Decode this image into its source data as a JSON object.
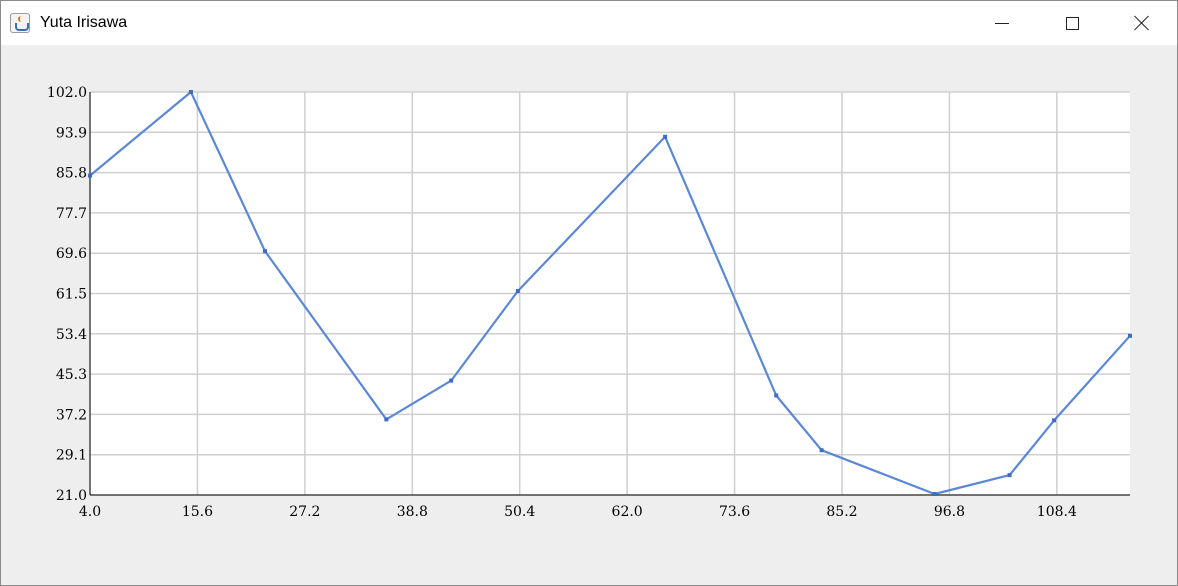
{
  "window": {
    "title": "Yuta Irisawa",
    "controls": {
      "minimize_icon": "minimize-icon",
      "maximize_icon": "maximize-icon",
      "close_icon": "close-icon"
    },
    "app_icon": "java-icon"
  },
  "chart_data": {
    "type": "line",
    "title": "",
    "xlabel": "",
    "ylabel": "",
    "xlim": [
      4.0,
      116.3
    ],
    "ylim": [
      21.0,
      102.0
    ],
    "x_ticks": [
      "4.0",
      "15.6",
      "27.2",
      "38.8",
      "50.4",
      "62.0",
      "73.6",
      "85.2",
      "96.8",
      "108.4"
    ],
    "y_ticks": [
      "21.0",
      "29.1",
      "37.2",
      "45.3",
      "53.4",
      "61.5",
      "69.6",
      "77.7",
      "85.8",
      "93.9",
      "102.0"
    ],
    "grid": true,
    "series": [
      {
        "color": "#5b87d8",
        "points": [
          {
            "x": 4.0,
            "y": 85.2
          },
          {
            "x": 14.9,
            "y": 102.0
          },
          {
            "x": 22.9,
            "y": 70.0
          },
          {
            "x": 36.0,
            "y": 36.2
          },
          {
            "x": 43.0,
            "y": 44.0
          },
          {
            "x": 50.2,
            "y": 62.0
          },
          {
            "x": 66.1,
            "y": 93.0
          },
          {
            "x": 78.1,
            "y": 41.0
          },
          {
            "x": 83.0,
            "y": 30.0
          },
          {
            "x": 95.2,
            "y": 21.2
          },
          {
            "x": 103.3,
            "y": 25.0
          },
          {
            "x": 108.1,
            "y": 36.0
          },
          {
            "x": 116.3,
            "y": 53.0
          }
        ]
      }
    ]
  }
}
